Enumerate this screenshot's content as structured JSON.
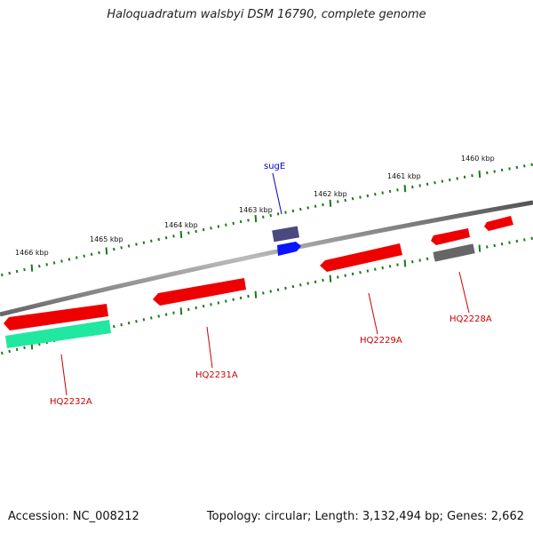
{
  "title": "Haloquadratum walsbyi DSM 16790, complete genome",
  "footer": {
    "accession": "Accession: NC_008212",
    "summary": "Topology: circular; Length: 3,132,494 bp; Genes: 2,662"
  },
  "ruler": [
    "1460 kbp",
    "1461 kbp",
    "1462 kbp",
    "1463 kbp",
    "1464 kbp",
    "1465 kbp",
    "1466 kbp"
  ],
  "genes": [
    {
      "name": "sugE",
      "strand": "plus",
      "color": "#0a14ff"
    },
    {
      "name": "HQ2228A",
      "strand": "minus",
      "color": "#ee0000"
    },
    {
      "name": "HQ2229A",
      "strand": "minus",
      "color": "#ee0000"
    },
    {
      "name": "HQ2231A",
      "strand": "minus",
      "color": "#ee0000"
    },
    {
      "name": "HQ2232A",
      "strand": "minus",
      "color": "#ee0000"
    }
  ],
  "colors": {
    "gene": "#ee0000",
    "gene_label": "#cc0000",
    "sugE": "#0a14ff",
    "sugE_label": "#0000cc",
    "cds_plus": "#4a4a80",
    "cds_minus": "#666666",
    "rna": "#20e8a0",
    "backbone": "#888888",
    "ruler": "#1a7a1a"
  }
}
